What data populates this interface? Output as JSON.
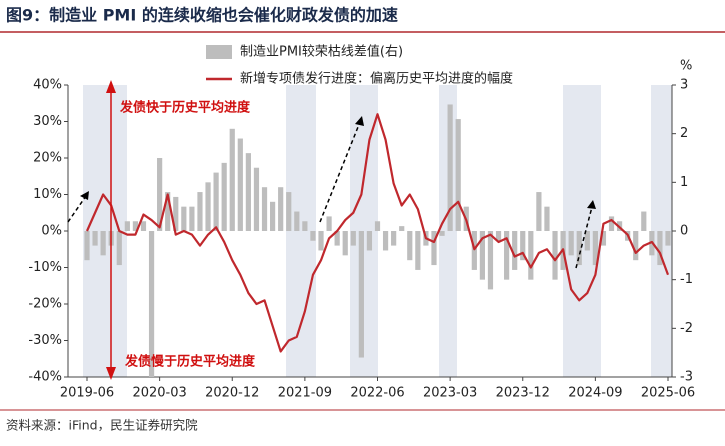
{
  "chart_data": {
    "type": "bar-line",
    "title": "图9：制造业 PMI 的连续收缩也会催化财政发债的加速",
    "source": "资料来源：iFind，民生证券研究院",
    "y2_unit": "%",
    "annotations": [
      "发债快于历史平均进度",
      "发债慢于历史平均进度"
    ],
    "categories": [
      "2019-06",
      null,
      null,
      null,
      null,
      null,
      null,
      null,
      null,
      "2020-03",
      null,
      null,
      null,
      null,
      null,
      null,
      null,
      null,
      "2020-12",
      null,
      null,
      null,
      null,
      null,
      null,
      null,
      null,
      "2021-09",
      null,
      null,
      null,
      null,
      null,
      null,
      null,
      null,
      "2022-06",
      null,
      null,
      null,
      null,
      null,
      null,
      null,
      null,
      "2023-03",
      null,
      null,
      null,
      null,
      null,
      null,
      null,
      null,
      "2023-12",
      null,
      null,
      null,
      null,
      null,
      null,
      null,
      null,
      "2024-09",
      null,
      null,
      null,
      null,
      null,
      null,
      null,
      null,
      "2025-06"
    ],
    "series": [
      {
        "name": "制造业PMI较荣枯线差值(右)",
        "type": "bar",
        "axis": "y2",
        "color": "#bdbdbd",
        "values": [
          -0.6,
          -0.3,
          -0.5,
          -0.3,
          -0.7,
          0.2,
          0.2,
          0.2,
          -3.0,
          1.5,
          0.8,
          0.7,
          0.5,
          0.5,
          0.8,
          1.0,
          1.2,
          1.4,
          2.1,
          1.9,
          1.6,
          1.3,
          0.9,
          0.6,
          0.9,
          0.8,
          0.4,
          0.2,
          -0.2,
          -0.4,
          0.3,
          -0.3,
          -0.5,
          -0.3,
          -2.6,
          -0.4,
          0.2,
          -0.4,
          -0.3,
          0.1,
          -0.6,
          -0.8,
          -0.3,
          -0.7,
          -0.1,
          2.6,
          2.3,
          0.5,
          -0.8,
          -1.0,
          -1.2,
          -0.2,
          -1.0,
          -0.8,
          -0.6,
          -1.0,
          0.8,
          0.5,
          -1.0,
          -0.8,
          -0.5,
          -0.7,
          -0.4,
          -0.7,
          -0.3,
          0.3,
          0.2,
          -0.2,
          -0.6,
          0.4,
          -0.5,
          -0.7,
          -0.3
        ]
      },
      {
        "name": "新增专项债发行进度：偏离历史平均进度的幅度",
        "type": "line",
        "color": "#c0282d",
        "values": [
          0,
          5,
          10,
          7,
          0,
          -1,
          -1,
          4.5,
          3,
          1,
          10,
          -1,
          0,
          -1,
          -4,
          -1,
          1,
          -3,
          -8,
          -12,
          -17,
          -20,
          -19,
          -26,
          -33,
          -30,
          -29,
          -22,
          -12,
          -8,
          -2,
          0,
          3,
          5,
          10,
          25,
          32,
          25,
          13,
          7,
          10,
          6,
          -2,
          -3,
          2,
          6,
          8,
          3,
          -5,
          -2,
          -1,
          -3,
          -2,
          -7,
          -6,
          -10,
          -6,
          -5,
          -8,
          -5,
          -16,
          -19,
          -17,
          -12,
          2,
          3,
          1,
          -1,
          -6,
          -4,
          -3,
          -6,
          -12
        ]
      }
    ],
    "ylim": [
      -40,
      40
    ],
    "yticks": [
      {
        "value": -40,
        "label": "-40%"
      },
      {
        "value": -30,
        "label": "-30%"
      },
      {
        "value": -20,
        "label": "-20%"
      },
      {
        "value": -10,
        "label": "-10%"
      },
      {
        "value": 0,
        "label": "0%"
      },
      {
        "value": 10,
        "label": "10%"
      },
      {
        "value": 20,
        "label": "20%"
      },
      {
        "value": 30,
        "label": "30%"
      },
      {
        "value": 40,
        "label": "40%"
      }
    ],
    "y2lim": [
      -3,
      3
    ],
    "y2ticks": [
      -3,
      -2,
      -1,
      0,
      1,
      2,
      3
    ]
  }
}
